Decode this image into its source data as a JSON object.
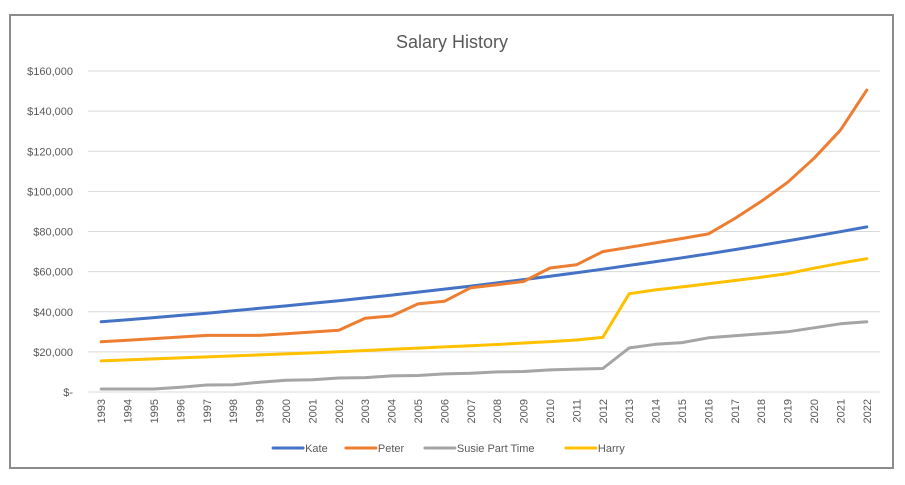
{
  "chart_data": {
    "type": "line",
    "title": "Salary History",
    "xlabel": "",
    "ylabel": "",
    "ylim": [
      0,
      160000
    ],
    "y_ticks": [
      {
        "value": 0,
        "label": "$-"
      },
      {
        "value": 20000,
        "label": "$20,000"
      },
      {
        "value": 40000,
        "label": "$40,000"
      },
      {
        "value": 60000,
        "label": "$60,000"
      },
      {
        "value": 80000,
        "label": "$80,000"
      },
      {
        "value": 100000,
        "label": "$100,000"
      },
      {
        "value": 120000,
        "label": "$120,000"
      },
      {
        "value": 140000,
        "label": "$140,000"
      },
      {
        "value": 160000,
        "label": "$160,000"
      }
    ],
    "categories": [
      "1993",
      "1994",
      "1995",
      "1996",
      "1997",
      "1998",
      "1999",
      "2000",
      "2001",
      "2002",
      "2003",
      "2004",
      "2005",
      "2006",
      "2007",
      "2008",
      "2009",
      "2010",
      "2011",
      "2012",
      "2013",
      "2014",
      "2015",
      "2016",
      "2017",
      "2018",
      "2019",
      "2020",
      "2021",
      "2022"
    ],
    "grid": true,
    "legend_position": "bottom",
    "series": [
      {
        "name": "Kate",
        "color": "#4472C4",
        "values": [
          35000,
          36000,
          37100,
          38200,
          39300,
          40500,
          41700,
          42900,
          44200,
          45500,
          46900,
          48300,
          49800,
          51300,
          52800,
          54400,
          56000,
          57700,
          59400,
          61200,
          63100,
          65000,
          66900,
          68900,
          71000,
          73100,
          75300,
          77600,
          79900,
          82300
        ]
      },
      {
        "name": "Peter",
        "color": "#ED7D31",
        "values": [
          25000,
          25800,
          26600,
          27400,
          28200,
          28200,
          28200,
          29000,
          29900,
          30800,
          36800,
          37900,
          43900,
          45200,
          52000,
          53500,
          55100,
          61800,
          63400,
          70000,
          72100,
          74300,
          76500,
          78800,
          86500,
          95000,
          104500,
          116500,
          130500,
          150500
        ]
      },
      {
        "name": "Susie Part Time",
        "color": "#A5A5A5",
        "values": [
          1500,
          1500,
          1500,
          2400,
          3500,
          3600,
          4900,
          5900,
          6100,
          7000,
          7200,
          8000,
          8200,
          9000,
          9300,
          10000,
          10200,
          11000,
          11400,
          11700,
          22000,
          23800,
          24600,
          27000,
          28000,
          29000,
          30000,
          32000,
          34000,
          35000
        ]
      },
      {
        "name": "Harry",
        "color": "#FFC000",
        "values": [
          15500,
          16000,
          16500,
          17000,
          17500,
          18000,
          18500,
          19000,
          19500,
          20100,
          20700,
          21300,
          21900,
          22500,
          23100,
          23700,
          24400,
          25100,
          25900,
          27200,
          49000,
          50900,
          52400,
          54000,
          55600,
          57200,
          59000,
          61700,
          64200,
          66500
        ]
      }
    ]
  }
}
